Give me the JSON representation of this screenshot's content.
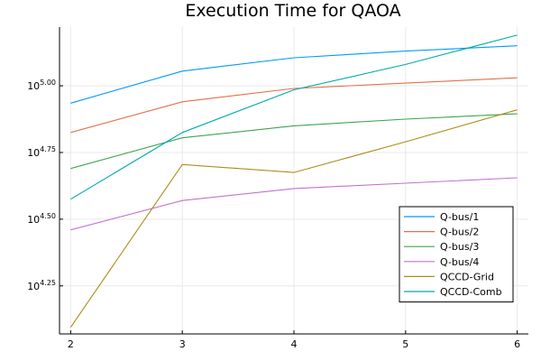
{
  "chart_data": {
    "type": "line",
    "title": "Execution Time for QAOA",
    "xlabel": "",
    "ylabel": "",
    "y_scale": "log10",
    "x": [
      2,
      3,
      4,
      5,
      6
    ],
    "x_ticks": [
      2,
      3,
      4,
      5,
      6
    ],
    "xlim": [
      1.9,
      6.1
    ],
    "y_ticks": [
      {
        "base": "10",
        "exp": "4.25",
        "value": 4.25
      },
      {
        "base": "10",
        "exp": "4.50",
        "value": 4.5
      },
      {
        "base": "10",
        "exp": "4.75",
        "value": 4.75
      },
      {
        "base": "10",
        "exp": "5.00",
        "value": 5.0
      }
    ],
    "ylim_log10": [
      4.07,
      5.22
    ],
    "grid": true,
    "legend_position": "bottom-right",
    "series": [
      {
        "name": "Q-bus/1",
        "color": "#009AFA",
        "values_log10": [
          4.935,
          5.055,
          5.105,
          5.13,
          5.15
        ]
      },
      {
        "name": "Q-bus/2",
        "color": "#E36F47",
        "values_log10": [
          4.825,
          4.94,
          4.99,
          5.01,
          5.03
        ]
      },
      {
        "name": "Q-bus/3",
        "color": "#3EA44E",
        "values_log10": [
          4.69,
          4.805,
          4.85,
          4.875,
          4.895
        ]
      },
      {
        "name": "Q-bus/4",
        "color": "#C371D2",
        "values_log10": [
          4.46,
          4.57,
          4.615,
          4.635,
          4.655
        ]
      },
      {
        "name": "QCCD-Grid",
        "color": "#AC8D18",
        "values_log10": [
          4.095,
          4.705,
          4.675,
          4.79,
          4.91
        ]
      },
      {
        "name": "QCCD-Comb",
        "color": "#00A9AD",
        "values_log10": [
          4.575,
          4.825,
          4.985,
          5.08,
          5.19
        ]
      }
    ]
  }
}
